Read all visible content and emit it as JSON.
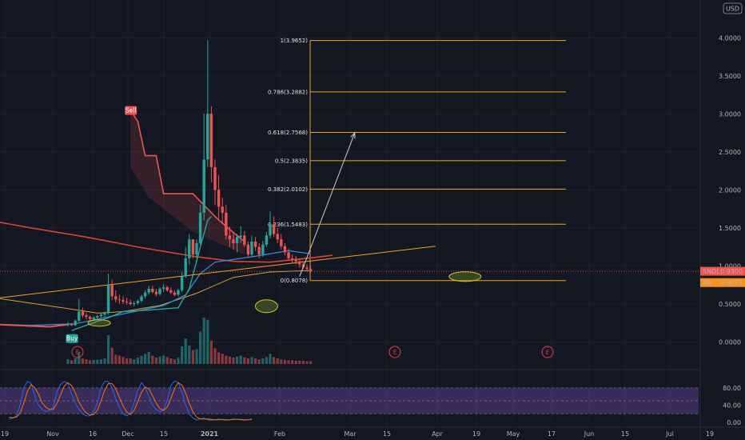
{
  "chart_data": {
    "type": "line",
    "currency": "USD",
    "y_ticks": [
      "4.0000",
      "3.5000",
      "3.0000",
      "2.5000",
      "2.0000",
      "1.5000",
      "1.0000",
      "0.5000",
      "0.0000"
    ],
    "y_tick_values": [
      4.0,
      3.5,
      3.0,
      2.5,
      2.0,
      1.5,
      1.0,
      0.5,
      0.0
    ],
    "ylim": [
      -0.3,
      4.35
    ],
    "x_ticks": [
      "19",
      "Nov",
      "16",
      "Dec",
      "15",
      "2021",
      "Feb",
      "Mar",
      "15",
      "Apr",
      "19",
      "May",
      "17",
      "Jun",
      "15",
      "Jul",
      "19"
    ],
    "osc_ticks": [
      "80.00",
      "40.00",
      "0.00"
    ],
    "osc_tick_values": [
      80,
      40,
      0
    ],
    "price_label": {
      "symbol": "SNDL",
      "value": "0.9300",
      "price": 0.93
    },
    "sma_label": {
      "symbol": "Fib",
      "value": "0.9073",
      "price": 0.9073
    },
    "signals": [
      {
        "label": "Buy",
        "day": 1,
        "price": 0.05,
        "color": "#26a69a"
      },
      {
        "label": "Sell",
        "day": 17,
        "price": 3.05,
        "color": "#ef5350"
      }
    ],
    "fib_levels": [
      {
        "label": "1(3.9652)",
        "price": 3.9652
      },
      {
        "label": "0.786(3.2882)",
        "price": 3.2882
      },
      {
        "label": "0.618(2.7568)",
        "price": 2.7568
      },
      {
        "label": "0.5(2.3835)",
        "price": 2.3835
      },
      {
        "label": "0.382(2.0102)",
        "price": 2.0102
      },
      {
        "label": "0.236(1.5483)",
        "price": 1.5483
      },
      {
        "label": "0(0.8078)",
        "price": 0.8078
      }
    ],
    "events": [
      "E",
      "E",
      "E"
    ],
    "candles": [
      [
        0.22,
        0.26,
        0.2,
        0.24
      ],
      [
        0.24,
        0.25,
        0.21,
        0.22
      ],
      [
        0.22,
        0.3,
        0.21,
        0.28
      ],
      [
        0.28,
        0.57,
        0.26,
        0.4
      ],
      [
        0.4,
        0.45,
        0.32,
        0.35
      ],
      [
        0.35,
        0.38,
        0.3,
        0.33
      ],
      [
        0.33,
        0.35,
        0.29,
        0.3
      ],
      [
        0.3,
        0.34,
        0.28,
        0.32
      ],
      [
        0.32,
        0.36,
        0.3,
        0.34
      ],
      [
        0.34,
        0.38,
        0.31,
        0.36
      ],
      [
        0.36,
        0.4,
        0.33,
        0.38
      ],
      [
        0.38,
        0.9,
        0.36,
        0.75
      ],
      [
        0.75,
        0.82,
        0.55,
        0.6
      ],
      [
        0.6,
        0.68,
        0.52,
        0.56
      ],
      [
        0.56,
        0.62,
        0.5,
        0.55
      ],
      [
        0.55,
        0.6,
        0.5,
        0.53
      ],
      [
        0.53,
        0.58,
        0.49,
        0.52
      ],
      [
        0.52,
        0.56,
        0.48,
        0.5
      ],
      [
        0.5,
        0.54,
        0.47,
        0.51
      ],
      [
        0.51,
        0.56,
        0.49,
        0.54
      ],
      [
        0.54,
        0.62,
        0.52,
        0.6
      ],
      [
        0.6,
        0.68,
        0.57,
        0.65
      ],
      [
        0.65,
        0.74,
        0.62,
        0.7
      ],
      [
        0.7,
        0.74,
        0.64,
        0.66
      ],
      [
        0.66,
        0.7,
        0.6,
        0.63
      ],
      [
        0.63,
        0.72,
        0.61,
        0.7
      ],
      [
        0.7,
        0.76,
        0.66,
        0.72
      ],
      [
        0.72,
        0.74,
        0.66,
        0.68
      ],
      [
        0.68,
        0.72,
        0.63,
        0.65
      ],
      [
        0.65,
        0.68,
        0.6,
        0.62
      ],
      [
        0.62,
        0.7,
        0.6,
        0.68
      ],
      [
        0.68,
        0.92,
        0.66,
        0.86
      ],
      [
        0.86,
        1.25,
        0.84,
        1.1
      ],
      [
        1.1,
        1.42,
        1.02,
        1.35
      ],
      [
        1.35,
        1.32,
        1.1,
        1.15
      ],
      [
        1.15,
        1.35,
        1.1,
        1.3
      ],
      [
        1.3,
        1.8,
        1.28,
        1.7
      ],
      [
        1.7,
        3.0,
        1.6,
        2.4
      ],
      [
        2.4,
        3.97,
        2.3,
        3.0
      ],
      [
        3.0,
        3.1,
        2.1,
        2.3
      ],
      [
        2.3,
        2.4,
        1.8,
        2.0
      ],
      [
        2.0,
        2.2,
        1.62,
        1.78
      ],
      [
        1.78,
        1.9,
        1.55,
        1.7
      ],
      [
        1.7,
        1.8,
        1.35,
        1.4
      ],
      [
        1.4,
        1.52,
        1.25,
        1.35
      ],
      [
        1.35,
        1.45,
        1.22,
        1.3
      ],
      [
        1.3,
        1.42,
        1.18,
        1.38
      ],
      [
        1.38,
        1.52,
        1.3,
        1.4
      ],
      [
        1.4,
        1.46,
        1.25,
        1.28
      ],
      [
        1.28,
        1.32,
        1.12,
        1.15
      ],
      [
        1.15,
        1.4,
        1.12,
        1.32
      ],
      [
        1.32,
        1.38,
        1.2,
        1.25
      ],
      [
        1.25,
        1.3,
        1.1,
        1.15
      ],
      [
        1.15,
        1.33,
        1.12,
        1.28
      ],
      [
        1.28,
        1.45,
        1.25,
        1.4
      ],
      [
        1.4,
        1.72,
        1.36,
        1.55
      ],
      [
        1.55,
        1.65,
        1.38,
        1.42
      ],
      [
        1.42,
        1.5,
        1.3,
        1.35
      ],
      [
        1.35,
        1.42,
        1.22,
        1.26
      ],
      [
        1.26,
        1.3,
        1.14,
        1.18
      ],
      [
        1.18,
        1.22,
        1.08,
        1.1
      ],
      [
        1.1,
        1.15,
        1.04,
        1.08
      ],
      [
        1.08,
        1.13,
        1.02,
        1.06
      ],
      [
        1.06,
        1.1,
        0.98,
        1.02
      ],
      [
        1.02,
        1.05,
        0.96,
        0.98
      ],
      [
        0.98,
        1.02,
        0.92,
        0.96
      ],
      [
        0.96,
        1.0,
        0.91,
        0.93
      ]
    ],
    "volumes": [
      0.1,
      0.08,
      0.12,
      0.26,
      0.12,
      0.1,
      0.08,
      0.09,
      0.09,
      0.1,
      0.12,
      0.62,
      0.35,
      0.2,
      0.18,
      0.15,
      0.12,
      0.12,
      0.1,
      0.14,
      0.18,
      0.22,
      0.26,
      0.18,
      0.14,
      0.16,
      0.18,
      0.15,
      0.12,
      0.1,
      0.14,
      0.38,
      0.55,
      0.4,
      0.3,
      0.32,
      0.7,
      1.0,
      0.95,
      0.5,
      0.34,
      0.25,
      0.22,
      0.18,
      0.16,
      0.14,
      0.16,
      0.18,
      0.14,
      0.12,
      0.15,
      0.12,
      0.1,
      0.12,
      0.15,
      0.22,
      0.15,
      0.12,
      0.1,
      0.09,
      0.08,
      0.08,
      0.07,
      0.07,
      0.07,
      0.06,
      0.06
    ],
    "sma200": [
      [
        -24,
        1.62
      ],
      [
        -10,
        1.5
      ],
      [
        5,
        1.38
      ],
      [
        20,
        1.24
      ],
      [
        35,
        1.12
      ],
      [
        45,
        1.06
      ],
      [
        55,
        1.05
      ],
      [
        65,
        1.1
      ],
      [
        72,
        1.14
      ]
    ],
    "fib_trend": [
      [
        -20,
        0.58
      ],
      [
        0,
        0.44
      ],
      [
        8,
        0.38
      ],
      [
        15,
        0.4
      ],
      [
        25,
        0.48
      ],
      [
        35,
        0.64
      ],
      [
        45,
        0.85
      ],
      [
        55,
        0.92
      ],
      [
        66,
        0.94
      ]
    ],
    "trend_line": [
      [
        -24,
        0.55
      ],
      [
        100,
        1.26
      ]
    ],
    "ema_blue": [
      [
        -24,
        0.24
      ],
      [
        -10,
        0.22
      ],
      [
        2,
        0.24
      ],
      [
        10,
        0.32
      ],
      [
        18,
        0.4
      ],
      [
        26,
        0.48
      ],
      [
        32,
        0.62
      ],
      [
        36,
        0.9
      ],
      [
        40,
        1.05
      ],
      [
        50,
        1.12
      ],
      [
        60,
        1.2
      ],
      [
        66,
        1.16
      ]
    ],
    "supertrend_up": [
      [
        1,
        0.15
      ],
      [
        5,
        0.22
      ],
      [
        11,
        0.32
      ],
      [
        15,
        0.4
      ],
      [
        22,
        0.42
      ],
      [
        30,
        0.45
      ],
      [
        33,
        0.7
      ],
      [
        36,
        1.25
      ],
      [
        38,
        1.6
      ],
      [
        39,
        1.65
      ]
    ],
    "supertrend_down": [
      [
        17,
        3.05
      ],
      [
        19,
        2.9
      ],
      [
        21,
        2.45
      ],
      [
        24,
        2.45
      ],
      [
        26,
        1.95
      ],
      [
        34,
        1.95
      ],
      [
        37,
        1.8
      ],
      [
        40,
        1.65
      ],
      [
        43,
        1.52
      ],
      [
        46,
        1.4
      ],
      [
        48,
        1.32
      ]
    ],
    "red_line": [
      [
        -24,
        0.24
      ],
      [
        -5,
        0.2
      ],
      [
        0,
        0.23
      ]
    ],
    "target_arrow": [
      [
        63,
        0.86
      ],
      [
        78,
        2.75
      ]
    ],
    "stoch_k": [
      8,
      10,
      15,
      40,
      80,
      95,
      90,
      60,
      40,
      30,
      25,
      28,
      35,
      70,
      88,
      95,
      90,
      65,
      45,
      30,
      20,
      15,
      15,
      25,
      45,
      80,
      95,
      95,
      80,
      55,
      35,
      20,
      15,
      22,
      45,
      75,
      92,
      80,
      60,
      40,
      30,
      25,
      30,
      50,
      85,
      96,
      92,
      70,
      40,
      20,
      10,
      6,
      8,
      10,
      6,
      5,
      6,
      8,
      6,
      5,
      6,
      8,
      7,
      6,
      5,
      6,
      8
    ],
    "stoch_d": [
      12,
      11,
      12,
      22,
      45,
      72,
      88,
      80,
      65,
      45,
      35,
      30,
      30,
      44,
      64,
      84,
      92,
      85,
      68,
      48,
      32,
      22,
      17,
      18,
      28,
      50,
      74,
      90,
      90,
      78,
      58,
      38,
      24,
      18,
      28,
      48,
      70,
      82,
      78,
      62,
      45,
      32,
      28,
      35,
      55,
      78,
      92,
      86,
      68,
      44,
      24,
      12,
      8,
      8,
      8,
      7,
      6,
      6,
      7,
      6,
      6,
      7,
      7,
      7,
      6,
      6,
      7
    ]
  }
}
